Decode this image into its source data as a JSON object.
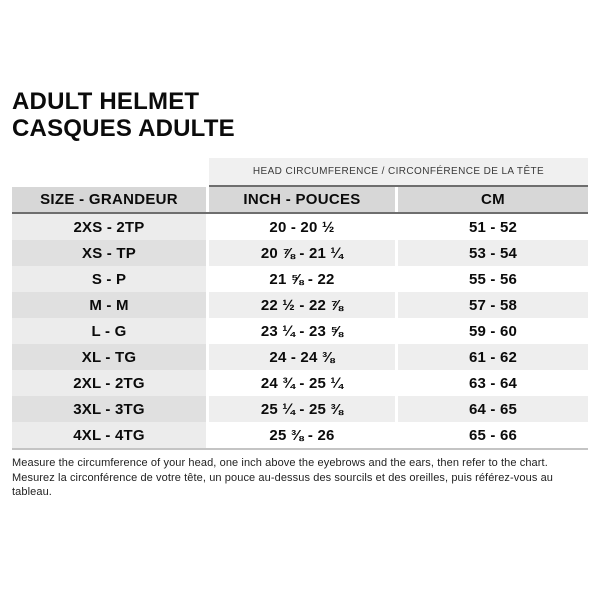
{
  "title": {
    "line1": "ADULT HELMET",
    "line2": "CASQUES ADULTE"
  },
  "table": {
    "banner": "HEAD CIRCUMFERENCE / CIRCONFÉRENCE DE LA TÊTE",
    "columns": {
      "size": "SIZE - GRANDEUR",
      "inch": "INCH - POUCES",
      "cm": "CM"
    },
    "rows": [
      {
        "size": "2XS - 2TP",
        "inch": "20 - 20 ½",
        "cm": "51 - 52"
      },
      {
        "size": "XS - TP",
        "inch": "20 ⅞ - 21 ¼",
        "cm": "53 - 54"
      },
      {
        "size": "S - P",
        "inch": "21 ⅝ - 22",
        "cm": "55 - 56"
      },
      {
        "size": "M - M",
        "inch": "22 ½ - 22 ⅞",
        "cm": "57 - 58"
      },
      {
        "size": "L - G",
        "inch": "23 ¼ - 23 ⅝",
        "cm": "59 - 60"
      },
      {
        "size": "XL - TG",
        "inch": "24 - 24 ⅜",
        "cm": "61 - 62"
      },
      {
        "size": "2XL - 2TG",
        "inch": "24 ¾ - 25 ¼",
        "cm": "63 - 64"
      },
      {
        "size": "3XL - 3TG",
        "inch": "25 ¼ - 25 ⅜",
        "cm": "64 - 65"
      },
      {
        "size": "4XL - 4TG",
        "inch": "25 ⅜ - 26",
        "cm": "65 - 66"
      }
    ]
  },
  "footer": {
    "en": "Measure the circumference of your head, one inch above the eyebrows and the ears, then refer to the chart.",
    "fr": "Mesurez la circonférence de votre tête, un pouce au-dessus des sourcils et des oreilles, puis référez-vous au tableau."
  },
  "colors": {
    "banner-bg": "#f0f0f0",
    "header-bg": "#d7d7d7",
    "row-alt": "#eeeeee",
    "size-col-bg": "#ececec",
    "size-col-alt": "#e0e0e0",
    "border-dark": "#6e6e6e",
    "border-light": "#c4c4c4"
  }
}
